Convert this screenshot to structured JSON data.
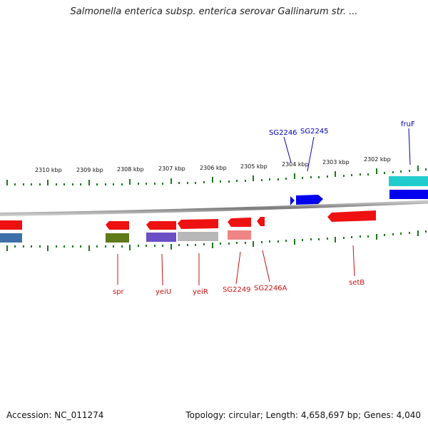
{
  "title": "Salmonella enterica subsp. enterica serovar Gallinarum str. ...",
  "footer": {
    "accession": "Accession: NC_011274",
    "summary": "Topology: circular; Length: 4,658,697 bp; Genes: 4,040"
  },
  "kbp_labels": [
    "2310 kbp",
    "2309 kbp",
    "2308 kbp",
    "2307 kbp",
    "2306 kbp",
    "2305 kbp",
    "2304 kbp",
    "2303 kbp",
    "2302 kbp"
  ],
  "top_gene_labels": [
    "SG2246",
    "SG2245",
    "fruF"
  ],
  "bottom_gene_labels": [
    "spr",
    "yeiU",
    "yeiR",
    "SG2249",
    "SG2246A",
    "setB"
  ],
  "colors": {
    "plus_strand_cds": "#0000ee",
    "minus_strand_cds": "#ee0000",
    "top_label": "#0000b8",
    "bottom_label": "#cc1111",
    "backbone": "#808080",
    "tick": "#1a7a1a"
  }
}
